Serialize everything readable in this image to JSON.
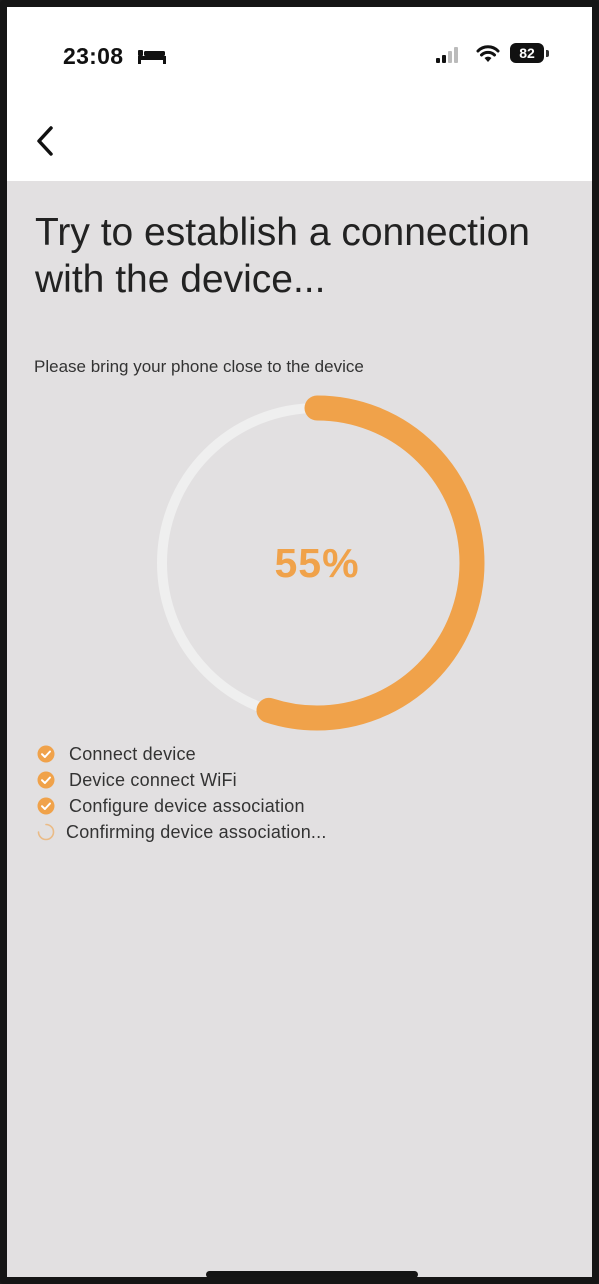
{
  "status_bar": {
    "time": "23:08",
    "battery": "82",
    "icons": [
      "bed-icon",
      "signal-icon",
      "wifi-icon",
      "battery-icon"
    ]
  },
  "nav": {
    "back_icon": "chevron-left-icon"
  },
  "header": {
    "title": "Try to establish a connection with the device...",
    "subtitle": "Please bring your phone close to the device"
  },
  "progress": {
    "percent": 55,
    "label": "55%",
    "color": "#f0a24a",
    "track_color": "#efefef"
  },
  "steps": [
    {
      "label": "Connect device",
      "status": "done"
    },
    {
      "label": "Device connect WiFi",
      "status": "done"
    },
    {
      "label": "Configure device association",
      "status": "done"
    },
    {
      "label": "Confirming device association...",
      "status": "in-progress"
    }
  ],
  "colors": {
    "accent": "#f0a24a",
    "background": "#e2e0e1",
    "topbar": "#ffffff"
  }
}
